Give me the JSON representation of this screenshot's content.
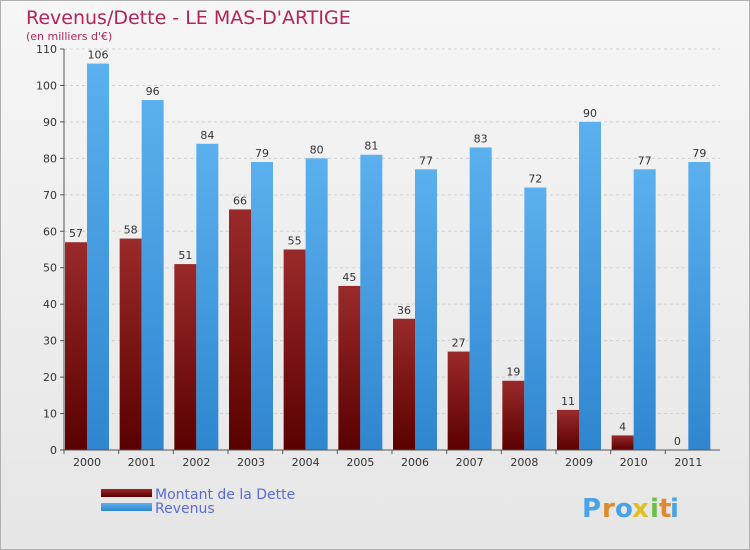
{
  "chart_data": {
    "type": "bar",
    "title": "Revenus/Dette - LE MAS-D'ARTIGE",
    "subtitle": "(en milliers d'€)",
    "categories": [
      "2000",
      "2001",
      "2002",
      "2003",
      "2004",
      "2005",
      "2006",
      "2007",
      "2008",
      "2009",
      "2010",
      "2011"
    ],
    "series": [
      {
        "name": "Montant de la Dette",
        "values": [
          57,
          58,
          51,
          66,
          55,
          45,
          36,
          27,
          19,
          11,
          4,
          0
        ],
        "color": "#8a1a1a"
      },
      {
        "name": "Revenus",
        "values": [
          106,
          96,
          84,
          79,
          80,
          81,
          77,
          83,
          72,
          90,
          77,
          79
        ],
        "color": "#4aa3e6"
      }
    ],
    "ylim": [
      0,
      110
    ],
    "yticks": [
      0,
      10,
      20,
      30,
      40,
      50,
      60,
      70,
      80,
      90,
      100,
      110
    ],
    "grid": true,
    "legend": "bottom-left"
  },
  "brand": {
    "letters": [
      "P",
      "r",
      "o",
      "x",
      "i",
      "t",
      "i"
    ],
    "colors": [
      "#4aa3e6",
      "#e08a2c",
      "#4aa3e6",
      "#e0c020",
      "#6cc04a",
      "#e08a2c",
      "#4aa3e6"
    ]
  }
}
